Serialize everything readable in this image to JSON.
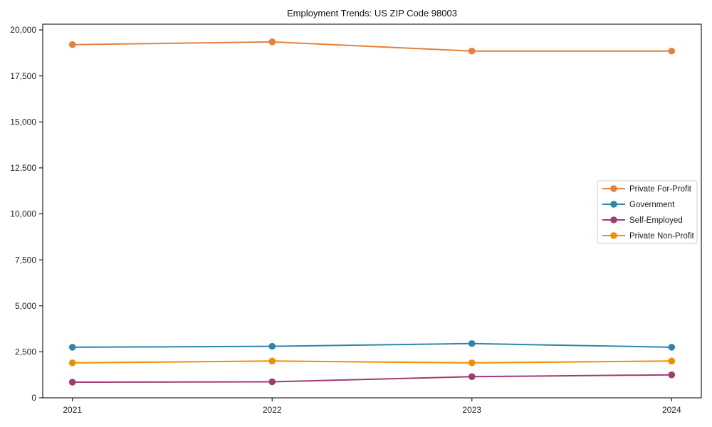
{
  "chart_data": {
    "type": "line",
    "title": "Employment Trends: US ZIP Code 98003",
    "x": [
      2021,
      2022,
      2023,
      2024
    ],
    "xtick_labels": [
      "2021",
      "2022",
      "2023",
      "2024"
    ],
    "series": [
      {
        "name": "Private For-Profit",
        "color": "#E6813C",
        "values": [
          19200,
          19350,
          18850,
          18850
        ]
      },
      {
        "name": "Government",
        "color": "#2E86AB",
        "values": [
          2750,
          2800,
          2950,
          2750
        ]
      },
      {
        "name": "Self-Employed",
        "color": "#A23B72",
        "values": [
          850,
          870,
          1150,
          1250
        ]
      },
      {
        "name": "Private Non-Profit",
        "color": "#F18F01",
        "values": [
          1900,
          2000,
          1900,
          2000
        ]
      }
    ],
    "ylim": [
      0,
      20310
    ],
    "yticks": [
      0,
      2500,
      5000,
      7500,
      10000,
      12500,
      15000,
      17500,
      20000
    ],
    "ytick_labels": [
      "0",
      "2,500",
      "5,000",
      "7,500",
      "10,000",
      "12,500",
      "15,000",
      "17,500",
      "20,000"
    ],
    "grid": false,
    "legend_position": "middle-right",
    "axis_color": "#222222",
    "legend_border_color": "#cccccc"
  }
}
